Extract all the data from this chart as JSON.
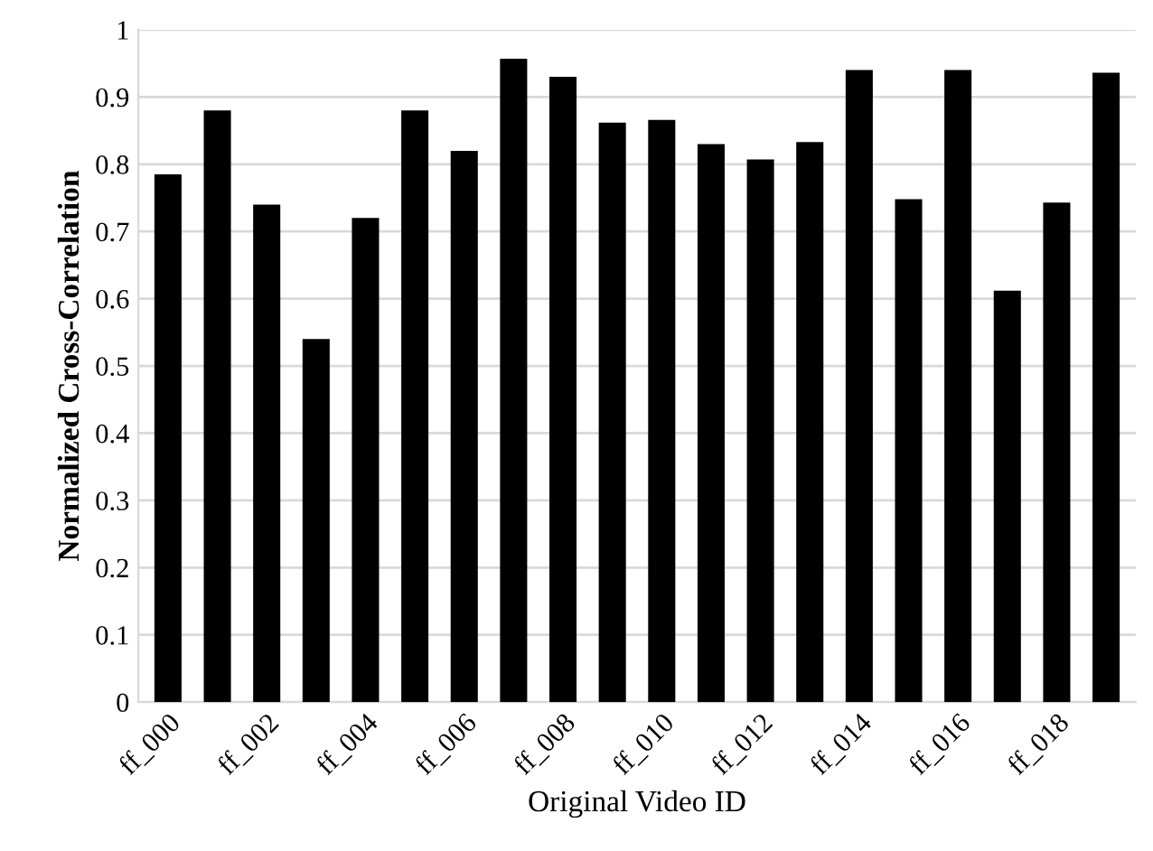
{
  "chart_data": {
    "type": "bar",
    "xlabel": "Original Video ID",
    "ylabel": "Normalized Cross-Correlation",
    "categories": [
      "ff_000",
      null,
      "ff_002",
      null,
      "ff_004",
      null,
      "ff_006",
      null,
      "ff_008",
      null,
      "ff_010",
      null,
      "ff_012",
      null,
      "ff_014",
      null,
      "ff_016",
      null,
      "ff_018",
      null
    ],
    "values": [
      0.785,
      0.88,
      0.74,
      0.54,
      0.72,
      0.88,
      0.82,
      0.957,
      0.93,
      0.862,
      0.866,
      0.83,
      0.807,
      0.833,
      0.94,
      0.748,
      0.94,
      0.612,
      0.743,
      0.936
    ],
    "color": "#000000",
    "ylim": [
      0,
      1
    ],
    "yticks": [
      0,
      0.1,
      0.2,
      0.3,
      0.4,
      0.5,
      0.6,
      0.7,
      0.8,
      0.9,
      1
    ],
    "grid": "y"
  }
}
